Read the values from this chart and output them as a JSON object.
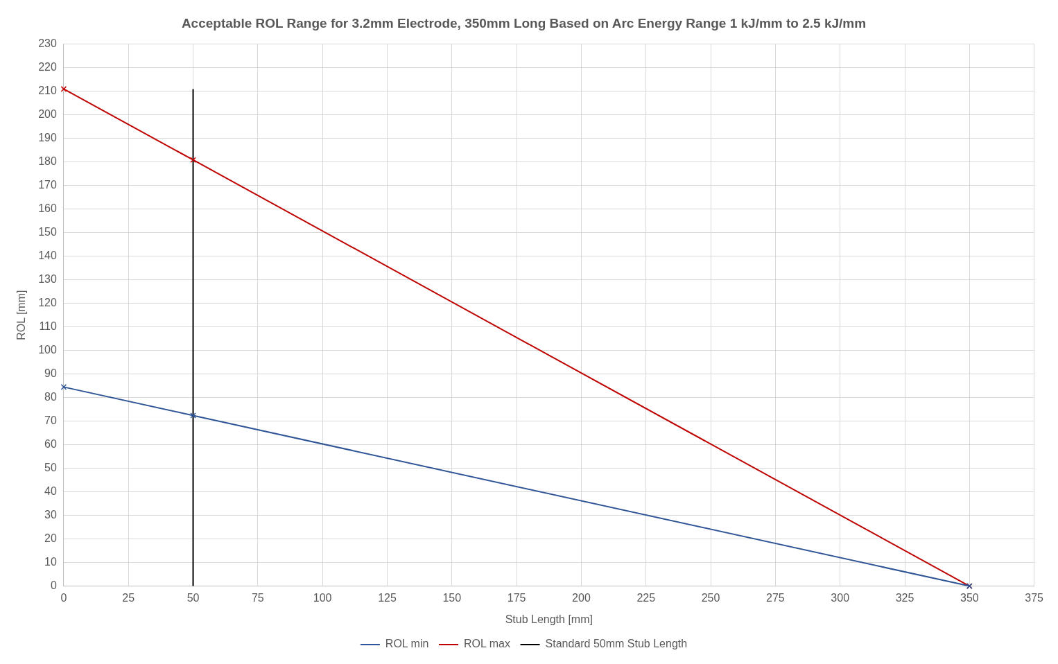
{
  "chart_data": {
    "type": "line",
    "title": "Acceptable ROL Range for 3.2mm Electrode, 350mm Long Based on Arc Energy Range 1 kJ/mm to 2.5 kJ/mm",
    "xlabel": "Stub Length [mm]",
    "ylabel": "ROL [mm]",
    "xlim": [
      0,
      375
    ],
    "xticks": [
      0,
      25,
      50,
      75,
      100,
      125,
      150,
      175,
      200,
      225,
      250,
      275,
      300,
      325,
      350,
      375
    ],
    "ylim": [
      0,
      230
    ],
    "yticks": [
      0,
      10,
      20,
      30,
      40,
      50,
      60,
      70,
      80,
      90,
      100,
      110,
      120,
      130,
      140,
      150,
      160,
      170,
      180,
      190,
      200,
      210,
      220,
      230
    ],
    "grid": true,
    "legend": "bottom",
    "line_style": "solid",
    "series": [
      {
        "name": "ROL min",
        "color": "#2f5597",
        "x": [
          0,
          50,
          350
        ],
        "values": [
          84.5,
          72.4,
          0
        ],
        "marker": "cross"
      },
      {
        "name": "ROL max",
        "color": "#c00000",
        "x": [
          0,
          50,
          350
        ],
        "values": [
          211,
          180.9,
          0
        ],
        "marker": "cross"
      },
      {
        "name": "Standard 50mm Stub Length",
        "color": "#000000",
        "x": [
          50,
          50
        ],
        "values": [
          0,
          211
        ],
        "marker": "none"
      }
    ]
  }
}
